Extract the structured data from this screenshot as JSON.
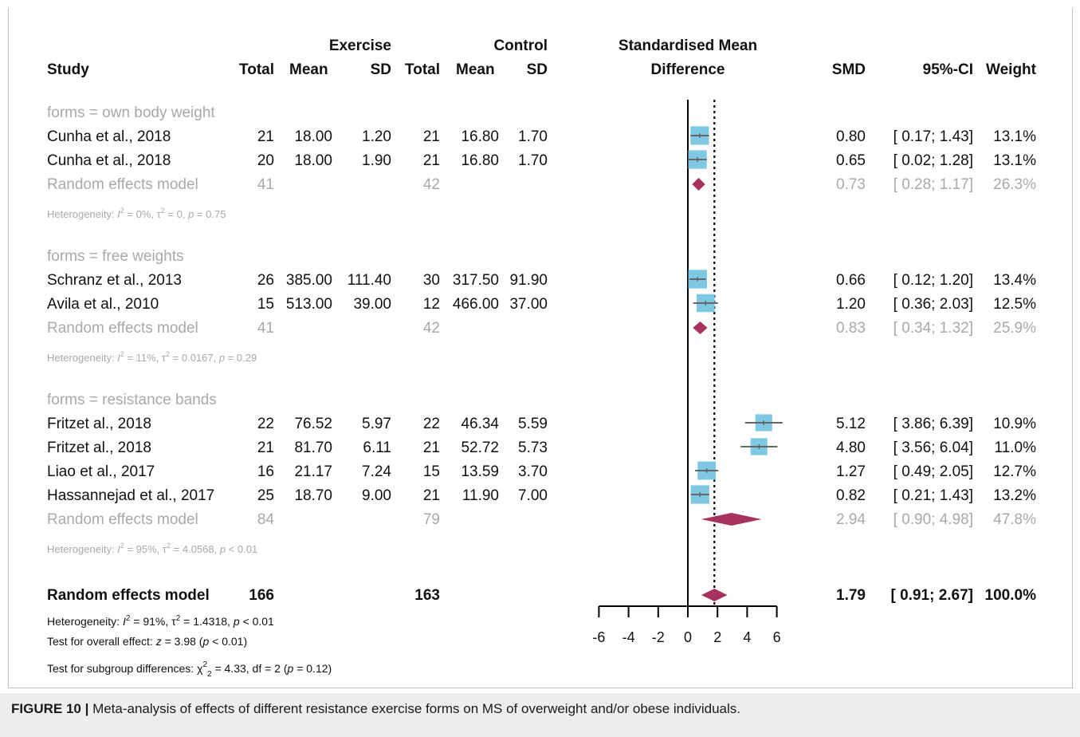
{
  "chart_data": {
    "type": "forest",
    "headers": {
      "group_exercise": "Exercise",
      "group_control": "Control",
      "plot_title_line1": "Standardised Mean",
      "plot_title_line2": "Difference",
      "study": "Study",
      "total_e": "Total",
      "mean_e": "Mean",
      "sd_e": "SD",
      "total_c": "Total",
      "mean_c": "Mean",
      "sd_c": "SD",
      "smd": "SMD",
      "ci": "95%-CI",
      "weight": "Weight"
    },
    "x_ticks": [
      "-6",
      "-4",
      "-2",
      "0",
      "2",
      "4",
      "6"
    ],
    "xlim": [
      -6,
      6
    ],
    "null_line": 0,
    "overall_line": 1.79,
    "subgroups": [
      {
        "label": "forms = own body weight",
        "studies": [
          {
            "study": "Cunha  et al., 2018",
            "total_e": "21",
            "mean_e": "18.00",
            "sd_e": "1.20",
            "total_c": "21",
            "mean_c": "16.80",
            "sd_c": "1.70",
            "smd": 0.8,
            "lower": 0.17,
            "upper": 1.43,
            "smd_text": "0.80",
            "ci_text": "[ 0.17;  1.43]",
            "weight_text": "13.1%",
            "weight": 13.1
          },
          {
            "study": "Cunha  et al., 2018",
            "total_e": "20",
            "mean_e": "18.00",
            "sd_e": "1.90",
            "total_c": "21",
            "mean_c": "16.80",
            "sd_c": "1.70",
            "smd": 0.65,
            "lower": 0.02,
            "upper": 1.28,
            "smd_text": "0.65",
            "ci_text": "[ 0.02;  1.28]",
            "weight_text": "13.1%",
            "weight": 13.1
          }
        ],
        "model": {
          "label": "Random effects model",
          "total_e": "41",
          "total_c": "42",
          "smd": 0.73,
          "lower": 0.28,
          "upper": 1.17,
          "smd_text": "0.73",
          "ci_text": "[ 0.28;  1.17]",
          "weight_text": "26.3%"
        },
        "heterogeneity": {
          "prefix": "Heterogeneity: ",
          "i2": "= 0%, ",
          "tau2": "= 0, ",
          "p": "= 0.75"
        }
      },
      {
        "label": "forms = free weights",
        "studies": [
          {
            "study": "Schranz et al., 2013",
            "total_e": "26",
            "mean_e": "385.00",
            "sd_e": "111.40",
            "total_c": "30",
            "mean_c": "317.50",
            "sd_c": "91.90",
            "smd": 0.66,
            "lower": 0.12,
            "upper": 1.2,
            "smd_text": "0.66",
            "ci_text": "[ 0.12;  1.20]",
            "weight_text": "13.4%",
            "weight": 13.4
          },
          {
            "study": "Avila  et al., 2010",
            "total_e": "15",
            "mean_e": "513.00",
            "sd_e": "39.00",
            "total_c": "12",
            "mean_c": "466.00",
            "sd_c": "37.00",
            "smd": 1.2,
            "lower": 0.36,
            "upper": 2.03,
            "smd_text": "1.20",
            "ci_text": "[ 0.36;  2.03]",
            "weight_text": "12.5%",
            "weight": 12.5
          }
        ],
        "model": {
          "label": "Random effects model",
          "total_e": "41",
          "total_c": "42",
          "smd": 0.83,
          "lower": 0.34,
          "upper": 1.32,
          "smd_text": "0.83",
          "ci_text": "[ 0.34;  1.32]",
          "weight_text": "25.9%"
        },
        "heterogeneity": {
          "prefix": "Heterogeneity: ",
          "i2": "= 11%, ",
          "tau2": "= 0.0167, ",
          "p": "= 0.29"
        }
      },
      {
        "label": "forms = resistance bands",
        "studies": [
          {
            "study": "Fritzet al., 2018",
            "total_e": "22",
            "mean_e": "76.52",
            "sd_e": "5.97",
            "total_c": "22",
            "mean_c": "46.34",
            "sd_c": "5.59",
            "smd": 5.12,
            "lower": 3.86,
            "upper": 6.39,
            "smd_text": "5.12",
            "ci_text": "[ 3.86;  6.39]",
            "weight_text": "10.9%",
            "weight": 10.9
          },
          {
            "study": "Fritzet al., 2018",
            "total_e": "21",
            "mean_e": "81.70",
            "sd_e": "6.11",
            "total_c": "21",
            "mean_c": "52.72",
            "sd_c": "5.73",
            "smd": 4.8,
            "lower": 3.56,
            "upper": 6.04,
            "smd_text": "4.80",
            "ci_text": "[ 3.56;  6.04]",
            "weight_text": "11.0%",
            "weight": 11.0
          },
          {
            "study": "Liao et al., 2017",
            "total_e": "16",
            "mean_e": "21.17",
            "sd_e": "7.24",
            "total_c": "15",
            "mean_c": "13.59",
            "sd_c": "3.70",
            "smd": 1.27,
            "lower": 0.49,
            "upper": 2.05,
            "smd_text": "1.27",
            "ci_text": "[ 0.49;  2.05]",
            "weight_text": "12.7%",
            "weight": 12.7
          },
          {
            "study": "Hassannejad et al., 2017",
            "total_e": "25",
            "mean_e": "18.70",
            "sd_e": "9.00",
            "total_c": "21",
            "mean_c": "11.90",
            "sd_c": "7.00",
            "smd": 0.82,
            "lower": 0.21,
            "upper": 1.43,
            "smd_text": "0.82",
            "ci_text": "[ 0.21;  1.43]",
            "weight_text": "13.2%",
            "weight": 13.2
          }
        ],
        "model": {
          "label": "Random effects model",
          "total_e": "84",
          "total_c": "79",
          "smd": 2.94,
          "lower": 0.9,
          "upper": 4.98,
          "smd_text": "2.94",
          "ci_text": "[ 0.90;  4.98]",
          "weight_text": "47.8%"
        },
        "heterogeneity": {
          "prefix": "Heterogeneity: ",
          "i2": "= 95%, ",
          "tau2": "= 4.0568, ",
          "p": "< 0.01"
        }
      }
    ],
    "overall": {
      "label": "Random effects model",
      "total_e": "166",
      "total_c": "163",
      "smd": 1.79,
      "lower": 0.91,
      "upper": 2.67,
      "smd_text": "1.79",
      "ci_text": "[ 0.91;  2.67]",
      "weight_text": "100.0%",
      "heterogeneity": {
        "prefix": "Heterogeneity: ",
        "i2": "= 91%, ",
        "tau2": "= 1.4318, ",
        "p": "< 0.01"
      },
      "overall_effect": {
        "prefix": "Test for overall effect: ",
        "z": "= 3.98 (",
        "p": "< 0.01)"
      },
      "subgroup_test": {
        "prefix": "Test for subgroup differences: ",
        "chi": "= 4.33, df = 2 (",
        "p": "= 0.12)"
      }
    },
    "colors": {
      "study_box": "#7ec8e3",
      "ci_line": "#666666",
      "diamond": "#a8325e",
      "subgroup_text": "#a9a9a9",
      "text": "#111111"
    }
  },
  "caption": {
    "label": "FIGURE 10 |",
    "text": " Meta-analysis of effects of different resistance exercise forms on MS of overweight and/or obese individuals."
  }
}
